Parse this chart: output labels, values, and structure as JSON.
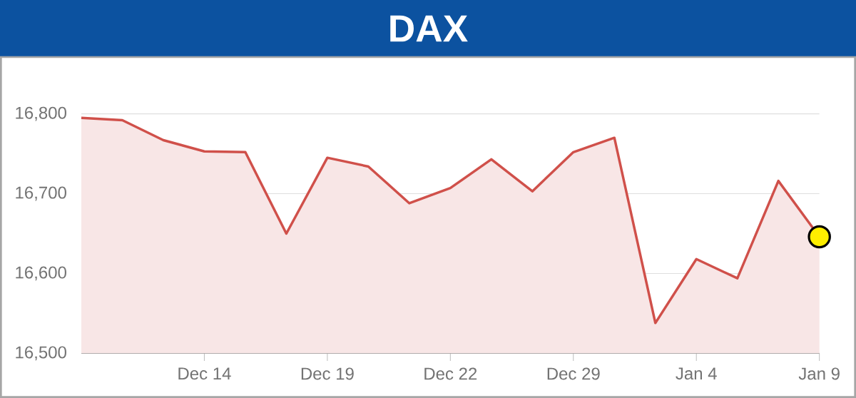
{
  "chart_data": {
    "type": "area",
    "title": "DAX",
    "categories": [
      null,
      null,
      null,
      "Dec 14",
      null,
      null,
      "Dec 19",
      null,
      null,
      "Dec 22",
      null,
      null,
      "Dec 29",
      null,
      null,
      "Jan 4",
      null,
      null,
      "Jan 9"
    ],
    "series": [
      {
        "color": "#d0504a",
        "values": [
          16795,
          16792,
          16767,
          16753,
          16752,
          16650,
          16745,
          16734,
          16688,
          16707,
          16743,
          16703,
          16752,
          16770,
          16538,
          16618,
          16594,
          16716,
          16646
        ]
      },
      {
        "type": "scatter",
        "color": "#ffee00",
        "marker": "circle",
        "x": [
          "Jan 9"
        ],
        "values": [
          16646
        ]
      }
    ],
    "ylim": [
      16500,
      16800
    ],
    "yticks": [
      {
        "value": 16500,
        "label": "16,500"
      },
      {
        "value": 16600,
        "label": "16,600"
      },
      {
        "value": 16700,
        "label": "16,700"
      },
      {
        "value": 16800,
        "label": "16,800"
      }
    ],
    "grid": "y"
  }
}
